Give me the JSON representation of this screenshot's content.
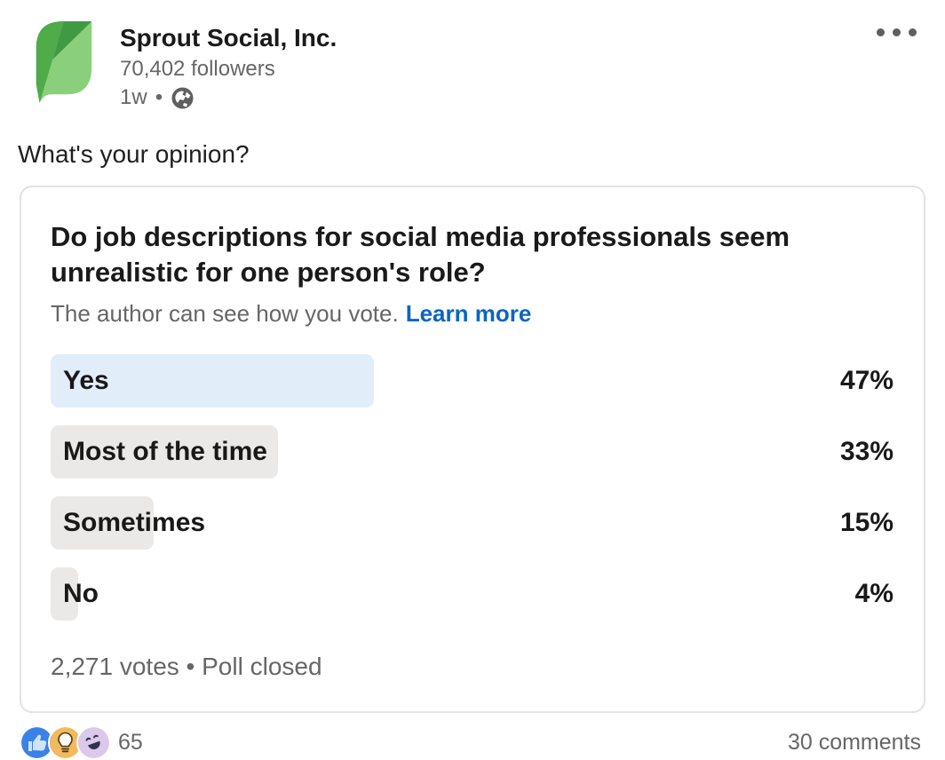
{
  "post": {
    "author": {
      "name": "Sprout Social, Inc.",
      "followers": "70,402 followers",
      "time": "1w",
      "meta_separator": "•",
      "visibility_icon": "globe-public"
    },
    "commentary": "What's your opinion?",
    "poll": {
      "question": "Do job descriptions for social media professionals seem unrealistic for one person's role?",
      "disclaimer": "The author can see how you vote.",
      "learn_more_label": "Learn more",
      "options": [
        {
          "label": "Yes",
          "pct": 47,
          "pct_label": "47%",
          "highlight": true
        },
        {
          "label": "Most of the time",
          "pct": 33,
          "pct_label": "33%",
          "highlight": false
        },
        {
          "label": "Sometimes",
          "pct": 15,
          "pct_label": "15%",
          "highlight": false
        },
        {
          "label": "No",
          "pct": 4,
          "pct_label": "4%",
          "highlight": false
        }
      ],
      "votes_summary": "2,271 votes • Poll closed"
    },
    "social": {
      "reactions": [
        "like",
        "insightful",
        "funny"
      ],
      "reaction_count": "65",
      "comments_label": "30 comments"
    }
  },
  "colors": {
    "link_blue": "#0a66c2",
    "highlight_bar": "#e2edfa",
    "neutral_bar": "#eae9e8",
    "like_blue": "#3b82e8",
    "like_thumb": "#cfe3f9",
    "insightful_amber": "#f2b95e",
    "funny_lavender": "#dcc8ea",
    "leaf_medium": "#50ab49",
    "leaf_dark": "#3f9a43",
    "leaf_light": "#8ad07c"
  }
}
